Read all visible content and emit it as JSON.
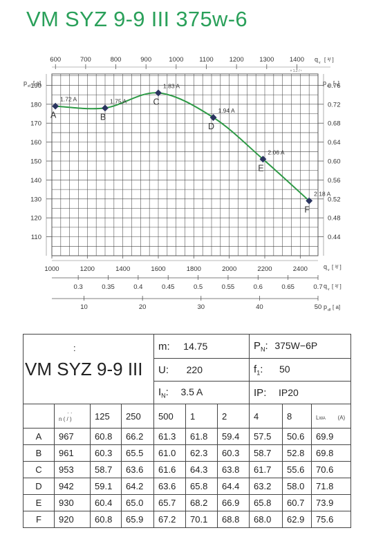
{
  "title": "VM SYZ 9-9 III 375w-6",
  "chart_data": {
    "type": "line",
    "series": [
      {
        "points": [
          {
            "label": "A",
            "q": 1020,
            "p": 179,
            "current": "1.72 A"
          },
          {
            "label": "B",
            "q": 1300,
            "p": 178,
            "current": "1.75 A"
          },
          {
            "label": "C",
            "q": 1600,
            "p": 186,
            "current": "1.83 A"
          },
          {
            "label": "D",
            "q": 1910,
            "p": 173,
            "current": "1.94 A"
          },
          {
            "label": "E",
            "q": 2190,
            "p": 151,
            "current": "2.06 A"
          },
          {
            "label": "F",
            "q": 2450,
            "p": 129,
            "current": "2.18 A"
          }
        ]
      }
    ],
    "axes": {
      "bottom": {
        "range": [
          1000,
          2500
        ],
        "ticks": [
          "1000",
          "1200",
          "1400",
          "1600",
          "1800",
          "2000",
          "2200",
          "2400"
        ],
        "label": "q",
        "label_sub": "v",
        "label_rest": "[ ³/ ]"
      },
      "top": {
        "range": [
          588,
          1470
        ],
        "ticks": [
          "600",
          "700",
          "800",
          "900",
          "1000",
          "1100",
          "1200",
          "1300",
          "1400"
        ],
        "label": "q",
        "label_sub": "v",
        "label_rest": "[ ³/ ]",
        "tiny": "× 1.2  /  ¹"
      },
      "left": {
        "range": [
          100,
          196
        ],
        "ticks": [
          "110",
          "120",
          "130",
          "140",
          "150",
          "160",
          "170",
          "180",
          "190"
        ],
        "label": "p",
        "label_sub": "sf",
        "label_rest": "[  a]"
      },
      "right": {
        "ticks": [
          "0.44",
          "0.48",
          "0.52",
          "0.56",
          "0.60",
          "0.64",
          "0.68",
          "0.72",
          "0.76"
        ],
        "label": "p",
        "label_sub": "sf",
        "label_rest": "[      ,]"
      },
      "extra1": {
        "range": [
          0.256,
          0.7
        ],
        "ticks": [
          "0.3",
          "0.35",
          "0.4",
          "0.45",
          "0.5",
          "0.55",
          "0.6",
          "0.65",
          "0.7"
        ],
        "label": "q",
        "label_sub": "v",
        "label_rest": "[  ³/ ]"
      },
      "extra2": {
        "range": [
          4.5,
          50
        ],
        "ticks": [
          "10",
          "20",
          "30",
          "40",
          "50"
        ],
        "label": "p",
        "label_sub": "df",
        "label_rest": "[  a]"
      }
    },
    "grid": true
  },
  "table": {
    "name": "VM SYZ 9-9 III",
    "name_colon": ":",
    "params": [
      {
        "label": "m:",
        "value": "14.75"
      },
      {
        "label": "U:",
        "value": "220"
      },
      {
        "label": "I",
        "sub": "N",
        "suffix": ":",
        "value": "3.5 A"
      },
      {
        "label": "P",
        "sub": "N",
        "suffix": ":",
        "value": "375W−6P"
      },
      {
        "label": "f",
        "sub": "1",
        "suffix": ":",
        "value": "50"
      },
      {
        "label": "IP:",
        "value": "IP20"
      }
    ],
    "header_n": "n (  /  )",
    "header_dots": "·     ·",
    "header_lwa": "L",
    "header_lwa_sub": "WA",
    "header_lwa_unit": "(A)",
    "bands": [
      "125",
      "250",
      "500",
      "1",
      "2",
      "4",
      "8"
    ],
    "rows": [
      {
        "pt": "A",
        "n": "967",
        "v": [
          "60.8",
          "66.2",
          "61.3",
          "61.8",
          "59.4",
          "57.5",
          "50.6"
        ],
        "lwa": "69.9"
      },
      {
        "pt": "B",
        "n": "961",
        "v": [
          "60.3",
          "65.5",
          "61.0",
          "62.3",
          "60.3",
          "58.7",
          "52.8"
        ],
        "lwa": "69.8"
      },
      {
        "pt": "C",
        "n": "953",
        "v": [
          "58.7",
          "63.6",
          "61.6",
          "64.3",
          "63.8",
          "61.7",
          "55.6"
        ],
        "lwa": "70.6"
      },
      {
        "pt": "D",
        "n": "942",
        "v": [
          "59.1",
          "64.2",
          "63.6",
          "65.8",
          "64.4",
          "63.2",
          "58.0"
        ],
        "lwa": "71.8"
      },
      {
        "pt": "E",
        "n": "930",
        "v": [
          "60.4",
          "65.0",
          "65.7",
          "68.2",
          "66.9",
          "65.8",
          "60.7"
        ],
        "lwa": "73.9"
      },
      {
        "pt": "F",
        "n": "920",
        "v": [
          "60.8",
          "65.9",
          "67.2",
          "70.1",
          "68.8",
          "68.0",
          "62.9"
        ],
        "lwa": "75.6"
      }
    ],
    "colors": {
      "curve": "#2e9a46",
      "marker": "#2b3560",
      "title": "#2aa05a"
    }
  }
}
